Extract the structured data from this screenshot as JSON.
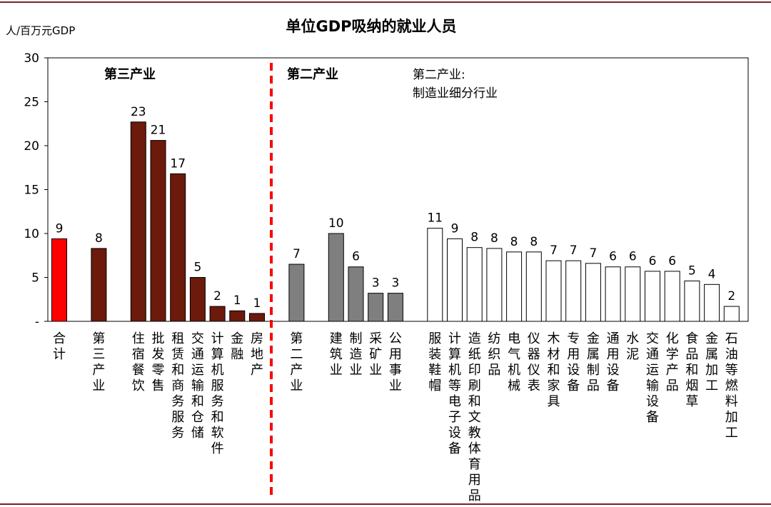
{
  "chart_data": {
    "type": "bar",
    "title": "单位GDP吸纳的就业人员",
    "ylabel": "人/百万元GDP",
    "ylim": [
      0,
      30
    ],
    "yticks": [
      "-",
      "5",
      "10",
      "15",
      "20",
      "25",
      "30"
    ],
    "grid": false,
    "section_labels": [
      {
        "text": "第三产业",
        "color": "#7b1f0e"
      },
      {
        "text": "第二产业",
        "color": "#000000"
      },
      {
        "text": "第二产业:",
        "color": "#000000"
      },
      {
        "text": "制造业细分行业",
        "color": "#000000"
      }
    ],
    "bars": [
      {
        "category": "合计",
        "value": 9.4,
        "label": "9",
        "color": "#ff0000",
        "slot": 0
      },
      {
        "category": "第三产业",
        "value": 8.3,
        "label": "8",
        "color": "#6b1a0c",
        "slot": 2
      },
      {
        "category": "住宿餐饮",
        "value": 22.7,
        "label": "23",
        "color": "#6b1a0c",
        "slot": 4
      },
      {
        "category": "批发零售",
        "value": 20.6,
        "label": "21",
        "color": "#6b1a0c",
        "slot": 5
      },
      {
        "category": "租赁和商务服务",
        "value": 16.8,
        "label": "17",
        "color": "#6b1a0c",
        "slot": 6
      },
      {
        "category": "交通运输和仓储",
        "value": 5.0,
        "label": "5",
        "color": "#6b1a0c",
        "slot": 7
      },
      {
        "category": "计算机服务和软件",
        "value": 1.7,
        "label": "2",
        "color": "#6b1a0c",
        "slot": 8
      },
      {
        "category": "金融",
        "value": 1.2,
        "label": "1",
        "color": "#6b1a0c",
        "slot": 9
      },
      {
        "category": "房地产",
        "value": 0.9,
        "label": "1",
        "color": "#6b1a0c",
        "slot": 10
      },
      {
        "category": "第二产业",
        "value": 6.5,
        "label": "7",
        "color": "#7f7f7f",
        "slot": 12
      },
      {
        "category": "建筑业",
        "value": 10.0,
        "label": "10",
        "color": "#7f7f7f",
        "slot": 14
      },
      {
        "category": "制造业",
        "value": 6.2,
        "label": "6",
        "color": "#7f7f7f",
        "slot": 15
      },
      {
        "category": "采矿业",
        "value": 3.2,
        "label": "3",
        "color": "#7f7f7f",
        "slot": 16
      },
      {
        "category": "公用事业",
        "value": 3.2,
        "label": "3",
        "color": "#7f7f7f",
        "slot": 17
      },
      {
        "category": "服装鞋帽",
        "value": 10.6,
        "label": "11",
        "color": "#ffffff",
        "slot": 19
      },
      {
        "category": "计算机等电子设备",
        "value": 9.4,
        "label": "9",
        "color": "#ffffff",
        "slot": 20
      },
      {
        "category": "造纸印刷和文教体育用品",
        "value": 8.4,
        "label": "8",
        "color": "#ffffff",
        "slot": 21
      },
      {
        "category": "纺织品",
        "value": 8.3,
        "label": "8",
        "color": "#ffffff",
        "slot": 22
      },
      {
        "category": "电气机械",
        "value": 7.9,
        "label": "8",
        "color": "#ffffff",
        "slot": 23
      },
      {
        "category": "仪器仪表",
        "value": 7.9,
        "label": "8",
        "color": "#ffffff",
        "slot": 24
      },
      {
        "category": "木材和家具",
        "value": 6.9,
        "label": "7",
        "color": "#ffffff",
        "slot": 25
      },
      {
        "category": "专用设备",
        "value": 6.9,
        "label": "7",
        "color": "#ffffff",
        "slot": 26
      },
      {
        "category": "金属制品",
        "value": 6.6,
        "label": "7",
        "color": "#ffffff",
        "slot": 27
      },
      {
        "category": "通用设备",
        "value": 6.2,
        "label": "6",
        "color": "#ffffff",
        "slot": 28
      },
      {
        "category": "水泥",
        "value": 6.2,
        "label": "6",
        "color": "#ffffff",
        "slot": 29
      },
      {
        "category": "交通运输设备",
        "value": 5.7,
        "label": "6",
        "color": "#ffffff",
        "slot": 30
      },
      {
        "category": "化学产品",
        "value": 5.7,
        "label": "6",
        "color": "#ffffff",
        "slot": 31
      },
      {
        "category": "食品和烟草",
        "value": 4.6,
        "label": "5",
        "color": "#ffffff",
        "slot": 32
      },
      {
        "category": "金属加工",
        "value": 4.2,
        "label": "4",
        "color": "#ffffff",
        "slot": 33
      },
      {
        "category": "石油等燃料加工",
        "value": 1.7,
        "label": "2",
        "color": "#ffffff",
        "slot": 34
      }
    ],
    "divider_color": "#ff0000",
    "border_color": "#7b1f2a"
  }
}
